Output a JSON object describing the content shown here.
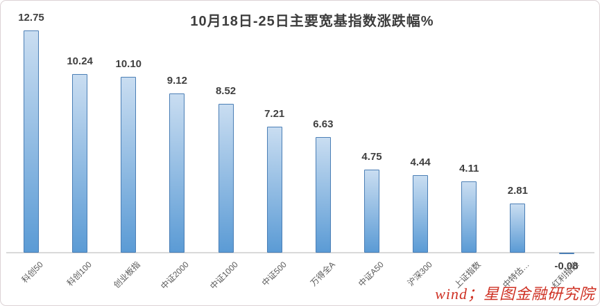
{
  "watermark": "wind；星图金融研究院",
  "colors": {
    "bar_gradient_top": "#c9ddf1",
    "bar_gradient_bottom": "#5b9bd5",
    "bar_border": "#4a7eb5",
    "axis_line": "#d9d9d9",
    "title_text": "#3d3d3d",
    "value_label_text": "#3f3f3f",
    "tick_label_text": "#595959",
    "watermark_text": "#cf3124"
  },
  "chart_data": {
    "type": "bar",
    "title": "10月18日-25日主要宽基指数涨跌幅%",
    "categories": [
      "科创50",
      "科创100",
      "创业板指",
      "中证2000",
      "中证1000",
      "中证500",
      "万得全A",
      "中证A50",
      "沪深300",
      "上证指数",
      "中特估…",
      "红利指数"
    ],
    "values": [
      12.75,
      10.24,
      10.1,
      9.12,
      8.52,
      7.21,
      6.63,
      4.75,
      4.44,
      4.11,
      2.81,
      -0.08
    ],
    "value_labels": [
      "12.75",
      "10.24",
      "10.10",
      "9.12",
      "8.52",
      "7.21",
      "6.63",
      "4.75",
      "4.44",
      "4.11",
      "2.81",
      "-0.08"
    ],
    "xlabel": "",
    "ylabel": "",
    "ylim": [
      -1,
      14
    ],
    "grid": false,
    "legend": false,
    "data_labels": "outside-end",
    "tick_label_rotation": -45
  }
}
